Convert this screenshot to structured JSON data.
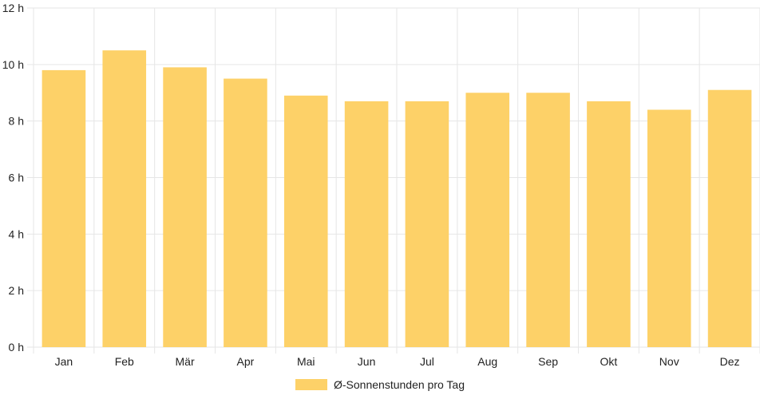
{
  "chart_data": {
    "type": "bar",
    "categories": [
      "Jan",
      "Feb",
      "Mär",
      "Apr",
      "Mai",
      "Jun",
      "Jul",
      "Aug",
      "Sep",
      "Okt",
      "Nov",
      "Dez"
    ],
    "series": [
      {
        "name": "Ø-Sonnenstunden pro Tag",
        "values": [
          9.8,
          10.5,
          9.9,
          9.5,
          8.9,
          8.7,
          8.7,
          9.0,
          9.0,
          8.7,
          8.4,
          9.1
        ],
        "color": "#fdd168"
      }
    ],
    "y_ticks": [
      "0 h",
      "2 h",
      "4 h",
      "6 h",
      "8 h",
      "10 h",
      "12 h"
    ],
    "ylim": [
      0,
      12
    ],
    "grid": true,
    "legend_position": "bottom-center",
    "colors": {
      "grid": "#e6e6e6",
      "axis": "#cccccc",
      "text": "#222222"
    }
  }
}
